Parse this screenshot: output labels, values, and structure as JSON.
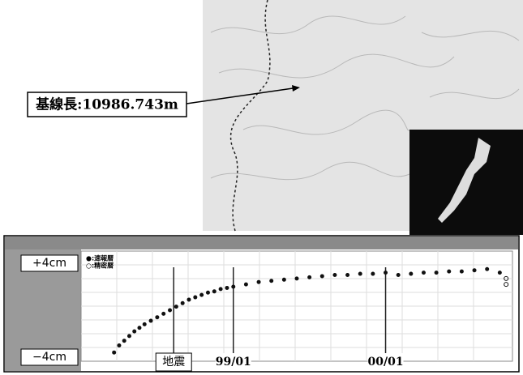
{
  "annotation": {
    "baseline": "基線長:10986.743m"
  },
  "chart_data": {
    "type": "scatter",
    "xlim": [
      0,
      34
    ],
    "ylim": [
      -4,
      4
    ],
    "yticks": [
      {
        "value": 4,
        "label": "+4cm"
      },
      {
        "value": -4,
        "label": "−4cm"
      }
    ],
    "markers": [
      {
        "x": 7.3,
        "label": "地震"
      },
      {
        "x": 12,
        "label": "99/01"
      },
      {
        "x": 24,
        "label": "00/01"
      }
    ],
    "series": [
      {
        "name": "●:速報暦",
        "color": "#111111",
        "x": [
          2.6,
          3.0,
          3.4,
          3.8,
          4.2,
          4.6,
          5.0,
          5.5,
          6.0,
          6.5,
          7.0,
          7.5,
          8.0,
          8.5,
          9.0,
          9.5,
          10,
          10.5,
          11,
          11.5,
          12,
          13,
          14,
          15,
          16,
          17,
          18,
          19,
          20,
          21,
          22,
          23,
          24,
          25,
          26,
          27,
          28,
          29,
          30,
          31,
          32,
          33
        ],
        "values": [
          -3.6,
          -3.0,
          -2.6,
          -2.2,
          -1.8,
          -1.5,
          -1.2,
          -0.9,
          -0.6,
          -0.3,
          0.0,
          0.3,
          0.6,
          0.9,
          1.1,
          1.3,
          1.5,
          1.6,
          1.8,
          1.9,
          2.0,
          2.2,
          2.4,
          2.5,
          2.6,
          2.7,
          2.8,
          2.9,
          3.0,
          3.0,
          3.1,
          3.1,
          3.2,
          3.0,
          3.1,
          3.2,
          3.2,
          3.3,
          3.3,
          3.4,
          3.5,
          3.2
        ]
      },
      {
        "name": "○:精密暦",
        "color": "#111111",
        "hollow": true,
        "x": [
          33.5,
          33.5
        ],
        "values": [
          2.7,
          2.2
        ]
      }
    ]
  }
}
